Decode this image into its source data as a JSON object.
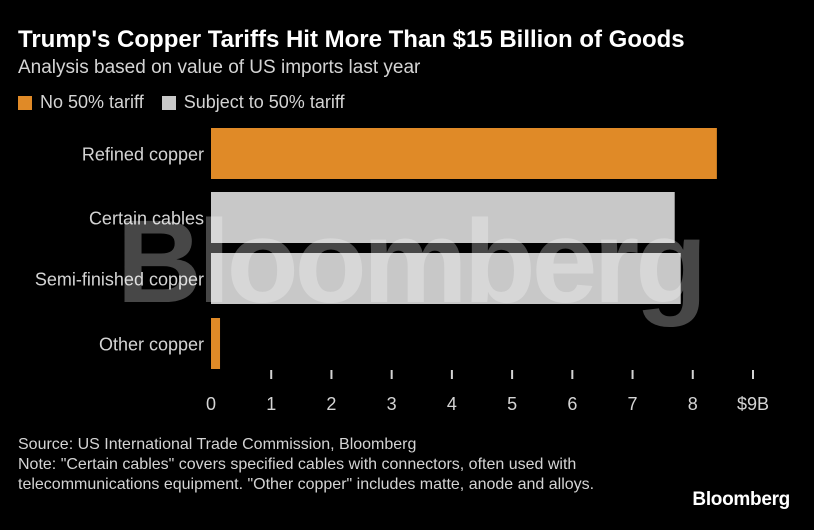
{
  "header": {
    "title": "Trump's Copper Tariffs Hit More Than $15 Billion of Goods",
    "subtitle": "Analysis based on value of US imports last year"
  },
  "legend": [
    {
      "label": "No 50% tariff",
      "color": "#e08a27"
    },
    {
      "label": "Subject to 50% tariff",
      "color": "#c8c8c8"
    }
  ],
  "chart_data": {
    "type": "bar",
    "orientation": "horizontal",
    "categories": [
      "Refined copper",
      "Certain cables",
      "Semi-finished copper",
      "Other copper"
    ],
    "values": [
      8.4,
      7.7,
      7.8,
      0.15
    ],
    "bar_groups": [
      "No 50% tariff",
      "Subject to 50% tariff",
      "Subject to 50% tariff",
      "No 50% tariff"
    ],
    "x_ticks": [
      "0",
      "1",
      "2",
      "3",
      "4",
      "5",
      "6",
      "7",
      "8",
      "$9B"
    ],
    "xlim": [
      0,
      9
    ],
    "unit": "$B",
    "grid": false,
    "legend_position": "top-left"
  },
  "watermark": "Bloomberg",
  "footer": {
    "source": "Source: US International Trade Commission, Bloomberg",
    "note": "Note: \"Certain cables\" covers specified cables with connectors, often used with telecommunications equipment. \"Other copper\" includes matte, anode and alloys."
  },
  "brand": "Bloomberg"
}
